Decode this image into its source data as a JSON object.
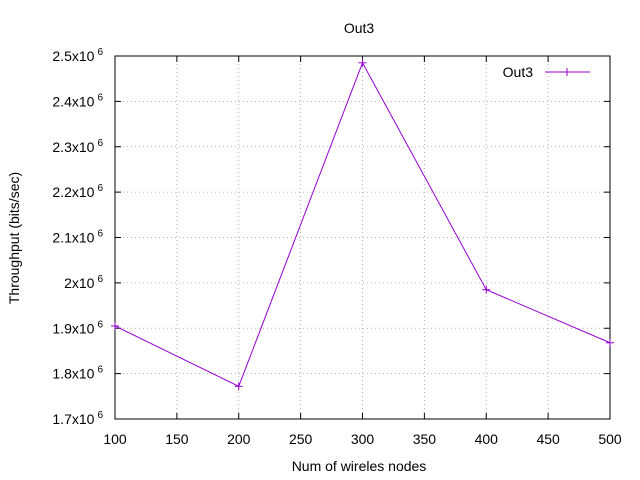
{
  "chart_data": {
    "type": "line",
    "title": "Out3",
    "xlabel": "Num of wireles nodes",
    "ylabel": "Throughput (bits/sec)",
    "x": [
      100,
      200,
      300,
      400,
      500
    ],
    "series": [
      {
        "name": "Out3",
        "values": [
          1905000,
          1772000,
          2485000,
          1985000,
          1868000
        ]
      }
    ],
    "xlim": [
      100,
      500
    ],
    "ylim": [
      1700000,
      2500000
    ],
    "x_ticks": [
      {
        "value": 100,
        "label": "100"
      },
      {
        "value": 150,
        "label": "150"
      },
      {
        "value": 200,
        "label": "200"
      },
      {
        "value": 250,
        "label": "250"
      },
      {
        "value": 300,
        "label": "300"
      },
      {
        "value": 350,
        "label": "350"
      },
      {
        "value": 400,
        "label": "400"
      },
      {
        "value": 450,
        "label": "450"
      },
      {
        "value": 500,
        "label": "500"
      }
    ],
    "y_ticks": [
      {
        "value": 1700000,
        "label": "1.7x10",
        "exp": "6"
      },
      {
        "value": 1800000,
        "label": "1.8x10",
        "exp": "6"
      },
      {
        "value": 1900000,
        "label": "1.9x10",
        "exp": "6"
      },
      {
        "value": 2000000,
        "label": "2x10",
        "exp": "6"
      },
      {
        "value": 2100000,
        "label": "2.1x10",
        "exp": "6"
      },
      {
        "value": 2200000,
        "label": "2.2x10",
        "exp": "6"
      },
      {
        "value": 2300000,
        "label": "2.3x10",
        "exp": "6"
      },
      {
        "value": 2400000,
        "label": "2.4x10",
        "exp": "6"
      },
      {
        "value": 2500000,
        "label": "2.5x10",
        "exp": "6"
      }
    ],
    "grid": true,
    "grid_style": "dotted",
    "legend_position": "top-right",
    "series_color": "#9400d3",
    "marker": "plus"
  }
}
